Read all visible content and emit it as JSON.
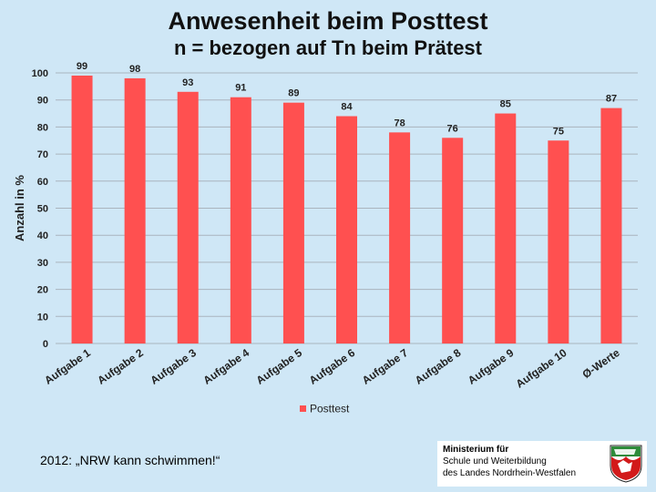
{
  "slide": {
    "title_line1": "Anwesenheit beim Posttest",
    "title_line2": "n = bezogen auf Tn beim Prätest",
    "footer_text": "2012: „NRW kann schwimmen!“",
    "ministry_lines": [
      "Ministerium für",
      "Schule und Weiterbildung",
      "des Landes Nordrhein-Westfalen"
    ]
  },
  "chart_data": {
    "type": "bar",
    "title": "Anwesenheit beim Posttest",
    "subtitle": "n = bezogen auf Tn beim Prätest",
    "xlabel": "",
    "ylabel": "Anzahl in %",
    "ylim": [
      0,
      100
    ],
    "yticks": [
      0,
      10,
      20,
      30,
      40,
      50,
      60,
      70,
      80,
      90,
      100
    ],
    "grid": true,
    "legend_position": "bottom",
    "categories": [
      "Aufgabe 1",
      "Aufgabe 2",
      "Aufgabe 3",
      "Aufgabe 4",
      "Aufgabe 5",
      "Aufgabe 6",
      "Aufgabe 7",
      "Aufgabe 8",
      "Aufgabe 9",
      "Aufgabe 10",
      "Ø-Werte"
    ],
    "series": [
      {
        "name": "Posttest",
        "color": "#ff5050",
        "values": [
          99,
          98,
          93,
          91,
          89,
          84,
          78,
          76,
          85,
          75,
          87
        ]
      }
    ]
  }
}
